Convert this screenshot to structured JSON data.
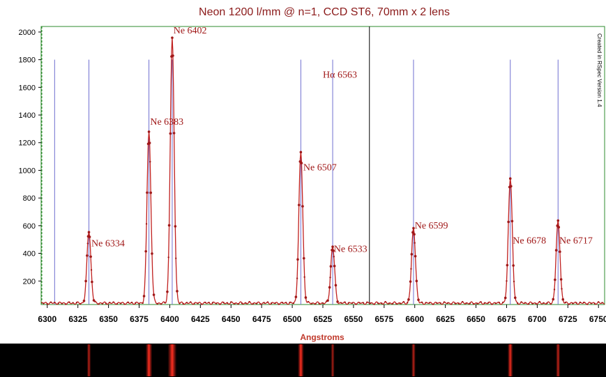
{
  "chart_data": {
    "type": "line",
    "title": "Neon 1200 l/mm @ n=1, CCD ST6, 70mm x 2 lens",
    "xlabel": "Angstroms",
    "ylabel": "",
    "side_note": "Created in RSpec Version 1.4",
    "xlim": [
      6295,
      6755
    ],
    "ylim": [
      30,
      2040
    ],
    "x_ticks": [
      6300,
      6325,
      6350,
      6375,
      6400,
      6425,
      6450,
      6475,
      6500,
      6525,
      6550,
      6575,
      6600,
      6625,
      6650,
      6675,
      6700,
      6725,
      6750
    ],
    "x_tick_labels": [
      "6300",
      "6325",
      "6350",
      "6375",
      "6400",
      "6425",
      "6450",
      "6475",
      "6500",
      "6525",
      "6550",
      "6575",
      "6600",
      "6625",
      "6650",
      "6675",
      "6700",
      "6725",
      "6750"
    ],
    "y_ticks": [
      200,
      400,
      600,
      800,
      1000,
      1200,
      1400,
      1600,
      1800,
      2000
    ],
    "y_tick_labels": [
      "200",
      "400",
      "600",
      "800",
      "1000",
      "1200",
      "1400",
      "1600",
      "1800",
      "2000"
    ],
    "grid": false,
    "baseline": 40,
    "peaks": [
      {
        "x": 6334,
        "y": 560
      },
      {
        "x": 6383,
        "y": 1280
      },
      {
        "x": 6402,
        "y": 1950
      },
      {
        "x": 6507,
        "y": 1130
      },
      {
        "x": 6533,
        "y": 450
      },
      {
        "x": 6599,
        "y": 580
      },
      {
        "x": 6678,
        "y": 950
      },
      {
        "x": 6717,
        "y": 630
      }
    ],
    "reference_lines": [
      6306,
      6334,
      6383,
      6402,
      6507,
      6533,
      6599,
      6678,
      6717
    ],
    "h_alpha_line": 6563,
    "annotations": [
      {
        "text": "Ne 6334",
        "x": 6336,
        "y": 450
      },
      {
        "text": "Ne 6383",
        "x": 6384,
        "y": 1330
      },
      {
        "text": "Ne 6402",
        "x": 6403,
        "y": 1990
      },
      {
        "text": "Ne 6507",
        "x": 6509,
        "y": 1000
      },
      {
        "text": "Ne 6533",
        "x": 6534,
        "y": 410
      },
      {
        "text": "Ne 6599",
        "x": 6600,
        "y": 580
      },
      {
        "text": "Ne 6678",
        "x": 6680,
        "y": 470
      },
      {
        "text": "Ne 6717",
        "x": 6718,
        "y": 470
      },
      {
        "text": "Hα 6563",
        "x": 6525,
        "y": 1670
      }
    ],
    "colors": {
      "title": "#8b1a1a",
      "spectrum": "#c0201f",
      "marker": "#a01818",
      "reference_line": "#6f6fd0",
      "h_alpha_line": "#000000",
      "frame": "#2e8b2e",
      "xlabel": "#c0392b"
    }
  },
  "spectrum_strip": {
    "background": "#000000",
    "line_color": "#e0201a"
  }
}
